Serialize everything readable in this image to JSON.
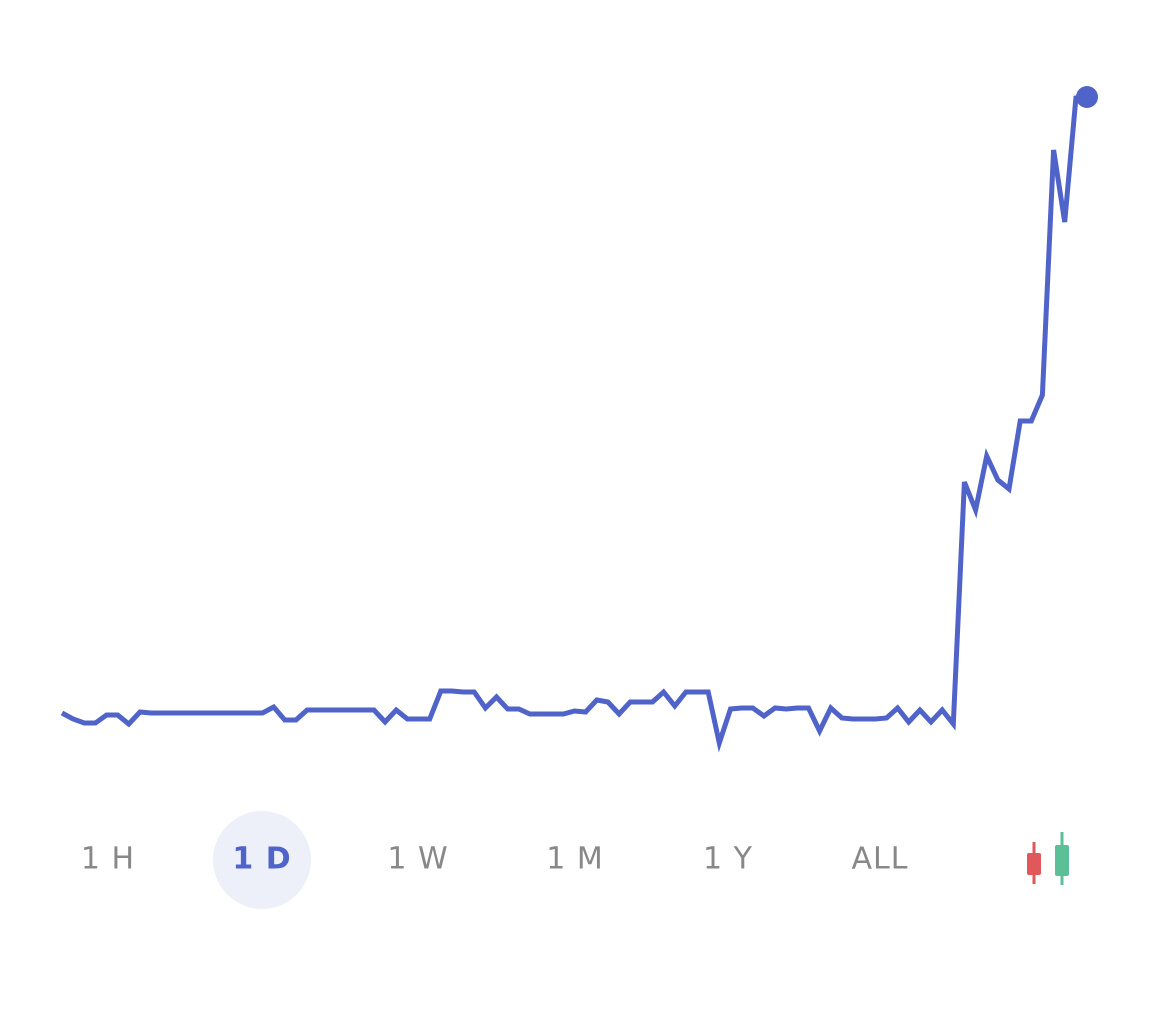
{
  "chart_data": {
    "type": "line",
    "color": "#4f63c9",
    "end_marker": true,
    "values": [
      3.2,
      2.6,
      2.2,
      2.2,
      3.0,
      3.0,
      2.1,
      3.3,
      3.2,
      3.2,
      3.2,
      3.2,
      3.2,
      3.2,
      3.2,
      3.2,
      3.2,
      3.2,
      3.2,
      3.8,
      2.5,
      2.5,
      3.5,
      3.5,
      3.5,
      3.5,
      3.5,
      3.5,
      3.5,
      2.3,
      3.5,
      2.6,
      2.6,
      2.6,
      5.4,
      5.4,
      5.3,
      5.3,
      3.7,
      4.8,
      3.6,
      3.6,
      3.1,
      3.1,
      3.1,
      3.1,
      3.4,
      3.3,
      4.5,
      4.3,
      3.1,
      4.3,
      4.3,
      4.3,
      5.3,
      3.9,
      5.3,
      5.3,
      5.3,
      0.2,
      3.6,
      3.7,
      3.7,
      2.9,
      3.7,
      3.6,
      3.7,
      3.7,
      1.4,
      3.7,
      2.7,
      2.6,
      2.6,
      2.6,
      2.7,
      3.7,
      2.3,
      3.5,
      2.3,
      3.5,
      2.1,
      26.3,
      23.5,
      28.9,
      26.5,
      25.6,
      32.4,
      32.4,
      35.0,
      59.5,
      52.3,
      64.7,
      64.8
    ]
  },
  "range_buttons": {
    "labels": [
      "1 H",
      "1 D",
      "1 W",
      "1 M",
      "1 Y",
      "ALL"
    ],
    "selected": 1
  }
}
